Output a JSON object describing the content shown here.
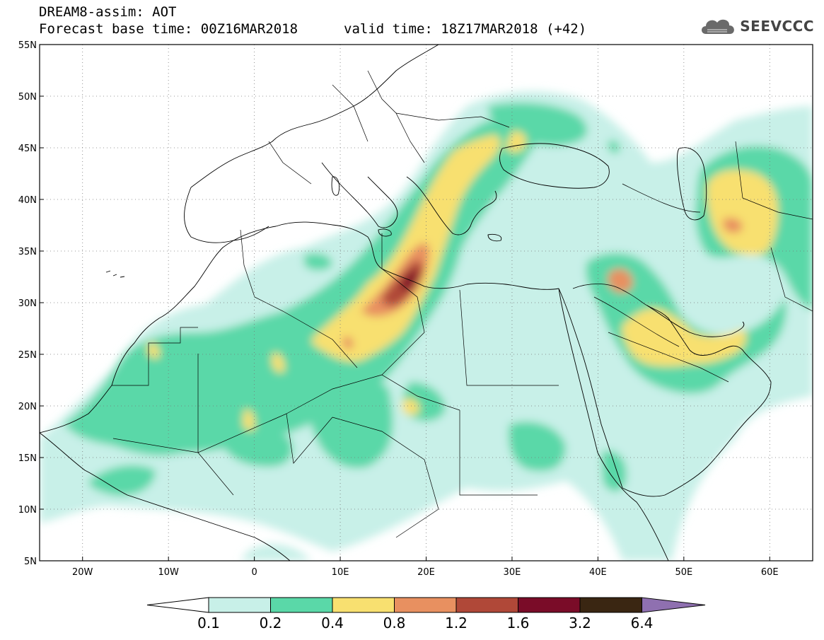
{
  "header": {
    "title": "DREAM8-assim: AOT",
    "base_time": "Forecast base time: 00Z16MAR2018",
    "valid_time": "valid time: 18Z17MAR2018 (+42)"
  },
  "logo": {
    "text": "SEEVCCC",
    "icon": "cloud-icon"
  },
  "map": {
    "lat_labels": [
      "55N",
      "50N",
      "45N",
      "40N",
      "35N",
      "30N",
      "25N",
      "20N",
      "15N",
      "10N",
      "5N"
    ],
    "lon_labels": [
      "20W",
      "10W",
      "0",
      "10E",
      "20E",
      "30E",
      "40E",
      "50E",
      "60E"
    ],
    "lon_range": [
      -25,
      65
    ],
    "lat_range": [
      5,
      55
    ],
    "grid": "dotted"
  },
  "colorbar": {
    "ticks": [
      "0.1",
      "0.2",
      "0.4",
      "0.8",
      "1.2",
      "1.6",
      "3.2",
      "6.4"
    ],
    "colors": [
      "#ffffff",
      "#c8f0e8",
      "#5ad8a8",
      "#f8e070",
      "#e89060",
      "#b04838",
      "#7a0c28",
      "#3a2612",
      "#8f70b0"
    ]
  }
}
